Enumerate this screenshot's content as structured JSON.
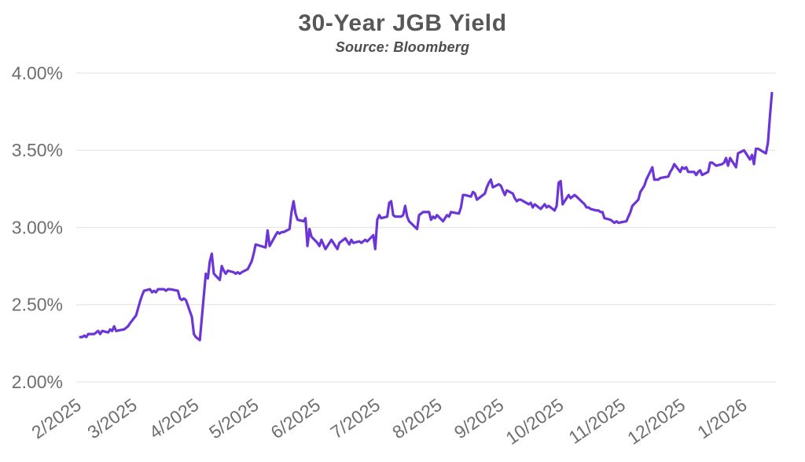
{
  "title": "30-Year JGB Yield",
  "subtitle": "Source: Bloomberg",
  "chart_data": {
    "type": "line",
    "title": "30-Year JGB Yield",
    "subtitle": "Source: Bloomberg",
    "ylabel": "",
    "xlabel": "",
    "ylim": [
      2.0,
      4.0
    ],
    "yticks": [
      4.0,
      3.5,
      3.0,
      2.5,
      2.0
    ],
    "ytick_labels": [
      "4.00%",
      "3.50%",
      "3.00%",
      "2.50%",
      "2.00%"
    ],
    "x_domain": [
      "2025-02-01",
      "2026-01-18"
    ],
    "xticks": [
      "2025-02-01",
      "2025-03-01",
      "2025-04-01",
      "2025-05-01",
      "2025-06-01",
      "2025-07-01",
      "2025-08-01",
      "2025-09-01",
      "2025-10-01",
      "2025-11-01",
      "2025-12-01",
      "2026-01-01"
    ],
    "xtick_labels": [
      "2/2025",
      "3/2025",
      "4/2025",
      "5/2025",
      "6/2025",
      "7/2025",
      "8/2025",
      "9/2025",
      "10/2025",
      "11/2025",
      "12/2025",
      "1/2026"
    ],
    "grid": "horizontal",
    "legend": "none",
    "colors": {
      "line": "#6C35D6",
      "grid": "#e7e7e7",
      "axis_text": "#6e6e6e",
      "title_text": "#57575a",
      "subtitle_text": "#4e4e4e",
      "background": "#ffffff"
    },
    "series": [
      {
        "name": "30-Year JGB Yield (%)",
        "color": "#6C35D6",
        "points": [
          [
            "2025-02-03",
            2.29
          ],
          [
            "2025-02-04",
            2.29
          ],
          [
            "2025-02-05",
            2.3
          ],
          [
            "2025-02-06",
            2.29
          ],
          [
            "2025-02-07",
            2.31
          ],
          [
            "2025-02-10",
            2.31
          ],
          [
            "2025-02-12",
            2.33
          ],
          [
            "2025-02-13",
            2.31
          ],
          [
            "2025-02-14",
            2.33
          ],
          [
            "2025-02-17",
            2.32
          ],
          [
            "2025-02-18",
            2.34
          ],
          [
            "2025-02-19",
            2.33
          ],
          [
            "2025-02-20",
            2.36
          ],
          [
            "2025-02-21",
            2.33
          ],
          [
            "2025-02-25",
            2.34
          ],
          [
            "2025-02-26",
            2.35
          ],
          [
            "2025-02-27",
            2.36
          ],
          [
            "2025-02-28",
            2.38
          ],
          [
            "2025-03-03",
            2.43
          ],
          [
            "2025-03-05",
            2.52
          ],
          [
            "2025-03-06",
            2.56
          ],
          [
            "2025-03-07",
            2.59
          ],
          [
            "2025-03-10",
            2.6
          ],
          [
            "2025-03-11",
            2.58
          ],
          [
            "2025-03-12",
            2.59
          ],
          [
            "2025-03-13",
            2.58
          ],
          [
            "2025-03-14",
            2.6
          ],
          [
            "2025-03-17",
            2.6
          ],
          [
            "2025-03-18",
            2.59
          ],
          [
            "2025-03-19",
            2.6
          ],
          [
            "2025-03-20",
            2.6
          ],
          [
            "2025-03-24",
            2.59
          ],
          [
            "2025-03-25",
            2.54
          ],
          [
            "2025-03-26",
            2.53
          ],
          [
            "2025-03-27",
            2.54
          ],
          [
            "2025-03-28",
            2.53
          ],
          [
            "2025-03-31",
            2.42
          ],
          [
            "2025-04-01",
            2.31
          ],
          [
            "2025-04-02",
            2.29
          ],
          [
            "2025-04-03",
            2.28
          ],
          [
            "2025-04-04",
            2.27
          ],
          [
            "2025-04-07",
            2.7
          ],
          [
            "2025-04-08",
            2.67
          ],
          [
            "2025-04-09",
            2.78
          ],
          [
            "2025-04-10",
            2.83
          ],
          [
            "2025-04-11",
            2.7
          ],
          [
            "2025-04-14",
            2.66
          ],
          [
            "2025-04-15",
            2.75
          ],
          [
            "2025-04-16",
            2.72
          ],
          [
            "2025-04-17",
            2.7
          ],
          [
            "2025-04-18",
            2.72
          ],
          [
            "2025-04-21",
            2.71
          ],
          [
            "2025-04-22",
            2.7
          ],
          [
            "2025-04-23",
            2.71
          ],
          [
            "2025-04-24",
            2.7
          ],
          [
            "2025-04-25",
            2.71
          ],
          [
            "2025-04-28",
            2.73
          ],
          [
            "2025-04-30",
            2.78
          ],
          [
            "2025-05-01",
            2.83
          ],
          [
            "2025-05-02",
            2.89
          ],
          [
            "2025-05-07",
            2.87
          ],
          [
            "2025-05-08",
            2.98
          ],
          [
            "2025-05-09",
            2.88
          ],
          [
            "2025-05-12",
            2.95
          ],
          [
            "2025-05-13",
            2.97
          ],
          [
            "2025-05-14",
            2.96
          ],
          [
            "2025-05-15",
            2.97
          ],
          [
            "2025-05-16",
            2.97
          ],
          [
            "2025-05-19",
            2.99
          ],
          [
            "2025-05-20",
            3.1
          ],
          [
            "2025-05-21",
            3.17
          ],
          [
            "2025-05-22",
            3.09
          ],
          [
            "2025-05-23",
            3.05
          ],
          [
            "2025-05-26",
            3.04
          ],
          [
            "2025-05-27",
            3.06
          ],
          [
            "2025-05-28",
            2.88
          ],
          [
            "2025-05-29",
            2.99
          ],
          [
            "2025-05-30",
            2.94
          ],
          [
            "2025-06-02",
            2.9
          ],
          [
            "2025-06-03",
            2.88
          ],
          [
            "2025-06-04",
            2.92
          ],
          [
            "2025-06-05",
            2.89
          ],
          [
            "2025-06-06",
            2.86
          ],
          [
            "2025-06-09",
            2.92
          ],
          [
            "2025-06-10",
            2.9
          ],
          [
            "2025-06-11",
            2.88
          ],
          [
            "2025-06-12",
            2.86
          ],
          [
            "2025-06-13",
            2.9
          ],
          [
            "2025-06-16",
            2.93
          ],
          [
            "2025-06-17",
            2.91
          ],
          [
            "2025-06-18",
            2.89
          ],
          [
            "2025-06-19",
            2.92
          ],
          [
            "2025-06-20",
            2.9
          ],
          [
            "2025-06-23",
            2.91
          ],
          [
            "2025-06-24",
            2.9
          ],
          [
            "2025-06-26",
            2.92
          ],
          [
            "2025-06-27",
            2.91
          ],
          [
            "2025-06-30",
            2.95
          ],
          [
            "2025-07-01",
            2.86
          ],
          [
            "2025-07-02",
            3.05
          ],
          [
            "2025-07-03",
            3.08
          ],
          [
            "2025-07-04",
            3.06
          ],
          [
            "2025-07-07",
            3.07
          ],
          [
            "2025-07-08",
            3.16
          ],
          [
            "2025-07-09",
            3.17
          ],
          [
            "2025-07-10",
            3.08
          ],
          [
            "2025-07-11",
            3.07
          ],
          [
            "2025-07-14",
            3.07
          ],
          [
            "2025-07-15",
            3.08
          ],
          [
            "2025-07-16",
            3.14
          ],
          [
            "2025-07-17",
            3.07
          ],
          [
            "2025-07-18",
            3.04
          ],
          [
            "2025-07-22",
            2.99
          ],
          [
            "2025-07-23",
            3.08
          ],
          [
            "2025-07-24",
            3.09
          ],
          [
            "2025-07-25",
            3.1
          ],
          [
            "2025-07-28",
            3.1
          ],
          [
            "2025-07-29",
            3.05
          ],
          [
            "2025-07-30",
            3.07
          ],
          [
            "2025-07-31",
            3.06
          ],
          [
            "2025-08-01",
            3.08
          ],
          [
            "2025-08-04",
            3.04
          ],
          [
            "2025-08-05",
            3.06
          ],
          [
            "2025-08-06",
            3.08
          ],
          [
            "2025-08-07",
            3.07
          ],
          [
            "2025-08-08",
            3.1
          ],
          [
            "2025-08-12",
            3.09
          ],
          [
            "2025-08-13",
            3.13
          ],
          [
            "2025-08-14",
            3.21
          ],
          [
            "2025-08-15",
            3.21
          ],
          [
            "2025-08-18",
            3.2
          ],
          [
            "2025-08-19",
            3.23
          ],
          [
            "2025-08-20",
            3.22
          ],
          [
            "2025-08-21",
            3.18
          ],
          [
            "2025-08-22",
            3.19
          ],
          [
            "2025-08-25",
            3.22
          ],
          [
            "2025-08-26",
            3.26
          ],
          [
            "2025-08-27",
            3.29
          ],
          [
            "2025-08-28",
            3.31
          ],
          [
            "2025-08-29",
            3.26
          ],
          [
            "2025-09-01",
            3.28
          ],
          [
            "2025-09-02",
            3.27
          ],
          [
            "2025-09-03",
            3.24
          ],
          [
            "2025-09-04",
            3.21
          ],
          [
            "2025-09-05",
            3.24
          ],
          [
            "2025-09-08",
            3.22
          ],
          [
            "2025-09-09",
            3.19
          ],
          [
            "2025-09-10",
            3.17
          ],
          [
            "2025-09-11",
            3.18
          ],
          [
            "2025-09-12",
            3.18
          ],
          [
            "2025-09-16",
            3.15
          ],
          [
            "2025-09-17",
            3.16
          ],
          [
            "2025-09-18",
            3.13
          ],
          [
            "2025-09-19",
            3.15
          ],
          [
            "2025-09-22",
            3.12
          ],
          [
            "2025-09-24",
            3.15
          ],
          [
            "2025-09-25",
            3.13
          ],
          [
            "2025-09-26",
            3.14
          ],
          [
            "2025-09-29",
            3.11
          ],
          [
            "2025-09-30",
            3.14
          ],
          [
            "2025-10-01",
            3.29
          ],
          [
            "2025-10-02",
            3.3
          ],
          [
            "2025-10-03",
            3.15
          ],
          [
            "2025-10-06",
            3.21
          ],
          [
            "2025-10-07",
            3.19
          ],
          [
            "2025-10-08",
            3.2
          ],
          [
            "2025-10-09",
            3.21
          ],
          [
            "2025-10-10",
            3.2
          ],
          [
            "2025-10-14",
            3.15
          ],
          [
            "2025-10-15",
            3.13
          ],
          [
            "2025-10-16",
            3.13
          ],
          [
            "2025-10-17",
            3.12
          ],
          [
            "2025-10-20",
            3.11
          ],
          [
            "2025-10-21",
            3.11
          ],
          [
            "2025-10-22",
            3.1
          ],
          [
            "2025-10-23",
            3.1
          ],
          [
            "2025-10-24",
            3.06
          ],
          [
            "2025-10-27",
            3.05
          ],
          [
            "2025-10-28",
            3.04
          ],
          [
            "2025-10-29",
            3.03
          ],
          [
            "2025-10-30",
            3.04
          ],
          [
            "2025-10-31",
            3.03
          ],
          [
            "2025-11-04",
            3.04
          ],
          [
            "2025-11-05",
            3.07
          ],
          [
            "2025-11-06",
            3.1
          ],
          [
            "2025-11-07",
            3.14
          ],
          [
            "2025-11-10",
            3.18
          ],
          [
            "2025-11-11",
            3.23
          ],
          [
            "2025-11-12",
            3.25
          ],
          [
            "2025-11-13",
            3.27
          ],
          [
            "2025-11-14",
            3.31
          ],
          [
            "2025-11-17",
            3.39
          ],
          [
            "2025-11-18",
            3.31
          ],
          [
            "2025-11-19",
            3.31
          ],
          [
            "2025-11-20",
            3.31
          ],
          [
            "2025-11-21",
            3.32
          ],
          [
            "2025-11-25",
            3.33
          ],
          [
            "2025-11-26",
            3.36
          ],
          [
            "2025-11-27",
            3.38
          ],
          [
            "2025-11-28",
            3.41
          ],
          [
            "2025-12-01",
            3.36
          ],
          [
            "2025-12-02",
            3.39
          ],
          [
            "2025-12-03",
            3.38
          ],
          [
            "2025-12-04",
            3.39
          ],
          [
            "2025-12-05",
            3.36
          ],
          [
            "2025-12-08",
            3.36
          ],
          [
            "2025-12-09",
            3.34
          ],
          [
            "2025-12-10",
            3.36
          ],
          [
            "2025-12-11",
            3.37
          ],
          [
            "2025-12-12",
            3.34
          ],
          [
            "2025-12-15",
            3.36
          ],
          [
            "2025-12-16",
            3.42
          ],
          [
            "2025-12-17",
            3.42
          ],
          [
            "2025-12-18",
            3.41
          ],
          [
            "2025-12-19",
            3.4
          ],
          [
            "2025-12-22",
            3.41
          ],
          [
            "2025-12-23",
            3.42
          ],
          [
            "2025-12-24",
            3.45
          ],
          [
            "2025-12-25",
            3.4
          ],
          [
            "2025-12-26",
            3.45
          ],
          [
            "2025-12-29",
            3.39
          ],
          [
            "2025-12-30",
            3.48
          ],
          [
            "2026-01-02",
            3.5
          ],
          [
            "2026-01-05",
            3.44
          ],
          [
            "2026-01-06",
            3.47
          ],
          [
            "2026-01-07",
            3.41
          ],
          [
            "2026-01-08",
            3.51
          ],
          [
            "2026-01-09",
            3.51
          ],
          [
            "2026-01-13",
            3.48
          ],
          [
            "2026-01-14",
            3.55
          ],
          [
            "2026-01-15",
            3.72
          ],
          [
            "2026-01-16",
            3.87
          ]
        ]
      }
    ]
  }
}
